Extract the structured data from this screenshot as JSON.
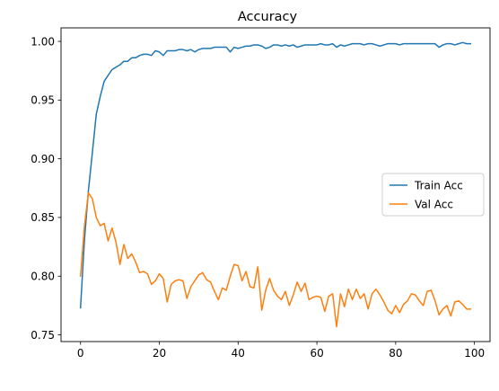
{
  "chart_data": {
    "type": "line",
    "title": "Accuracy",
    "xlabel": "",
    "ylabel": "",
    "xlim": [
      -4.95,
      103.95
    ],
    "ylim": [
      0.7443,
      1.0115
    ],
    "xticks": [
      0,
      20,
      40,
      60,
      80,
      100
    ],
    "yticks": [
      0.75,
      0.8,
      0.85,
      0.9,
      0.95,
      1.0
    ],
    "xtick_labels": [
      "0",
      "20",
      "40",
      "60",
      "80",
      "100"
    ],
    "ytick_labels": [
      "0.75",
      "0.80",
      "0.85",
      "0.90",
      "0.95",
      "1.00"
    ],
    "grid": false,
    "legend_position": "center-right",
    "series": [
      {
        "name": "Train Acc",
        "color": "#1f77b4",
        "x": [
          0,
          1,
          2,
          3,
          4,
          5,
          6,
          7,
          8,
          9,
          10,
          11,
          12,
          13,
          14,
          15,
          16,
          17,
          18,
          19,
          20,
          21,
          22,
          23,
          24,
          25,
          26,
          27,
          28,
          29,
          30,
          31,
          32,
          33,
          34,
          35,
          36,
          37,
          38,
          39,
          40,
          41,
          42,
          43,
          44,
          45,
          46,
          47,
          48,
          49,
          50,
          51,
          52,
          53,
          54,
          55,
          56,
          57,
          58,
          59,
          60,
          61,
          62,
          63,
          64,
          65,
          66,
          67,
          68,
          69,
          70,
          71,
          72,
          73,
          74,
          75,
          76,
          77,
          78,
          79,
          80,
          81,
          82,
          83,
          84,
          85,
          86,
          87,
          88,
          89,
          90,
          91,
          92,
          93,
          94,
          95,
          96,
          97,
          98,
          99
        ],
        "values": [
          0.773,
          0.831,
          0.873,
          0.905,
          0.938,
          0.953,
          0.966,
          0.971,
          0.976,
          0.978,
          0.98,
          0.983,
          0.983,
          0.986,
          0.986,
          0.988,
          0.989,
          0.989,
          0.988,
          0.992,
          0.991,
          0.988,
          0.992,
          0.992,
          0.992,
          0.993,
          0.993,
          0.992,
          0.993,
          0.991,
          0.993,
          0.994,
          0.994,
          0.994,
          0.995,
          0.995,
          0.995,
          0.995,
          0.991,
          0.995,
          0.994,
          0.995,
          0.996,
          0.996,
          0.997,
          0.997,
          0.996,
          0.994,
          0.995,
          0.997,
          0.997,
          0.996,
          0.997,
          0.996,
          0.997,
          0.995,
          0.996,
          0.997,
          0.997,
          0.997,
          0.997,
          0.998,
          0.997,
          0.997,
          0.998,
          0.995,
          0.997,
          0.996,
          0.997,
          0.998,
          0.998,
          0.998,
          0.997,
          0.998,
          0.998,
          0.997,
          0.996,
          0.997,
          0.998,
          0.998,
          0.998,
          0.997,
          0.998,
          0.998,
          0.998,
          0.998,
          0.998,
          0.998,
          0.998,
          0.998,
          0.998,
          0.995,
          0.997,
          0.998,
          0.998,
          0.997,
          0.998,
          0.999,
          0.998,
          0.998
        ]
      },
      {
        "name": "Val Acc",
        "color": "#ff7f0e",
        "x": [
          0,
          1,
          2,
          3,
          4,
          5,
          6,
          7,
          8,
          9,
          10,
          11,
          12,
          13,
          14,
          15,
          16,
          17,
          18,
          19,
          20,
          21,
          22,
          23,
          24,
          25,
          26,
          27,
          28,
          29,
          30,
          31,
          32,
          33,
          34,
          35,
          36,
          37,
          38,
          39,
          40,
          41,
          42,
          43,
          44,
          45,
          46,
          47,
          48,
          49,
          50,
          51,
          52,
          53,
          54,
          55,
          56,
          57,
          58,
          59,
          60,
          61,
          62,
          63,
          64,
          65,
          66,
          67,
          68,
          69,
          70,
          71,
          72,
          73,
          74,
          75,
          76,
          77,
          78,
          79,
          80,
          81,
          82,
          83,
          84,
          85,
          86,
          87,
          88,
          89,
          90,
          91,
          92,
          93,
          94,
          95,
          96,
          97,
          98,
          99
        ],
        "values": [
          0.8,
          0.843,
          0.871,
          0.866,
          0.85,
          0.843,
          0.845,
          0.83,
          0.841,
          0.829,
          0.81,
          0.827,
          0.815,
          0.819,
          0.812,
          0.803,
          0.804,
          0.802,
          0.793,
          0.796,
          0.802,
          0.798,
          0.778,
          0.793,
          0.796,
          0.797,
          0.796,
          0.781,
          0.791,
          0.796,
          0.801,
          0.803,
          0.797,
          0.795,
          0.787,
          0.78,
          0.79,
          0.788,
          0.8,
          0.81,
          0.809,
          0.796,
          0.804,
          0.791,
          0.79,
          0.808,
          0.771,
          0.788,
          0.798,
          0.788,
          0.783,
          0.78,
          0.787,
          0.775,
          0.784,
          0.795,
          0.787,
          0.794,
          0.78,
          0.782,
          0.783,
          0.782,
          0.77,
          0.783,
          0.785,
          0.757,
          0.785,
          0.774,
          0.789,
          0.78,
          0.789,
          0.781,
          0.785,
          0.772,
          0.785,
          0.789,
          0.784,
          0.778,
          0.771,
          0.768,
          0.775,
          0.769,
          0.776,
          0.779,
          0.785,
          0.784,
          0.779,
          0.775,
          0.787,
          0.788,
          0.779,
          0.767,
          0.772,
          0.775,
          0.766,
          0.778,
          0.779,
          0.776,
          0.772,
          0.772
        ]
      }
    ]
  }
}
